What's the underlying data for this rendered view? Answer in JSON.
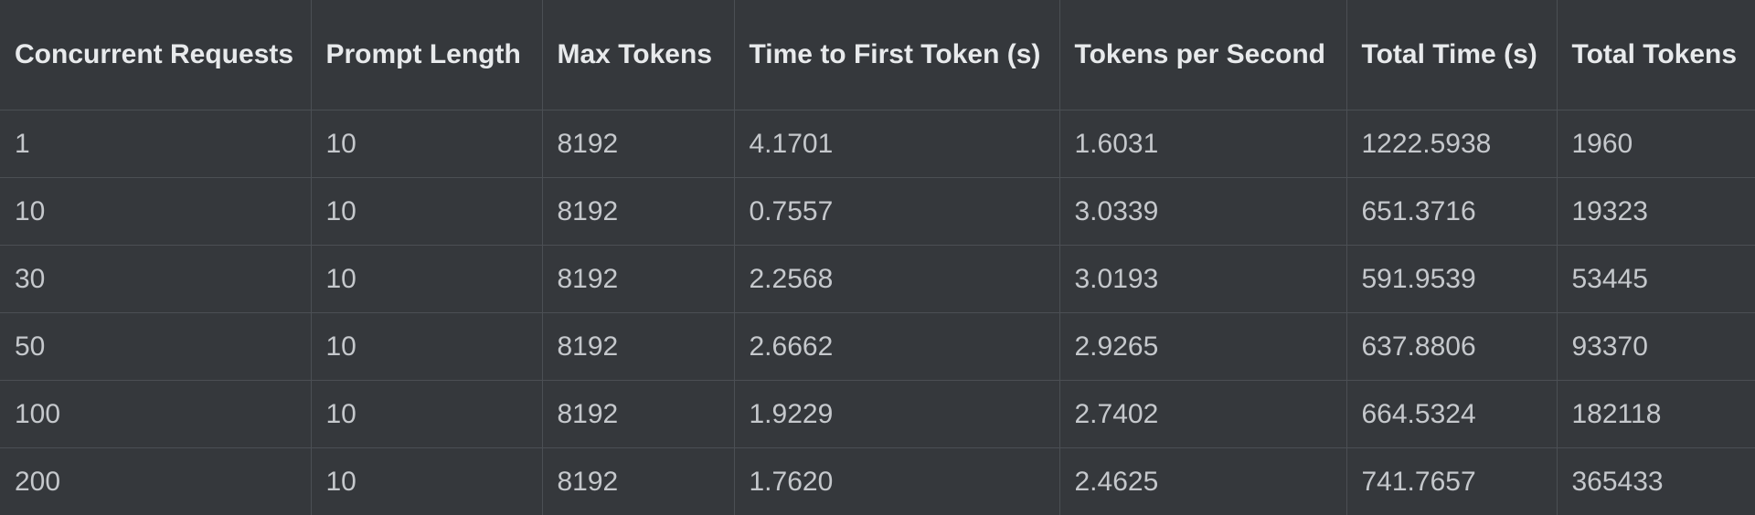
{
  "table": {
    "headers": [
      "Concurrent Requests",
      "Prompt Length",
      "Max Tokens",
      "Time to First Token (s)",
      "Tokens per Second",
      "Total Time (s)",
      "Total Tokens"
    ],
    "rows": [
      [
        "1",
        "10",
        "8192",
        "4.1701",
        "1.6031",
        "1222.5938",
        "1960"
      ],
      [
        "10",
        "10",
        "8192",
        "0.7557",
        "3.0339",
        "651.3716",
        "19323"
      ],
      [
        "30",
        "10",
        "8192",
        "2.2568",
        "3.0193",
        "591.9539",
        "53445"
      ],
      [
        "50",
        "10",
        "8192",
        "2.6662",
        "2.9265",
        "637.8806",
        "93370"
      ],
      [
        "100",
        "10",
        "8192",
        "1.9229",
        "2.7402",
        "664.5324",
        "182118"
      ],
      [
        "200",
        "10",
        "8192",
        "1.7620",
        "2.4625",
        "741.7657",
        "365433"
      ]
    ]
  }
}
